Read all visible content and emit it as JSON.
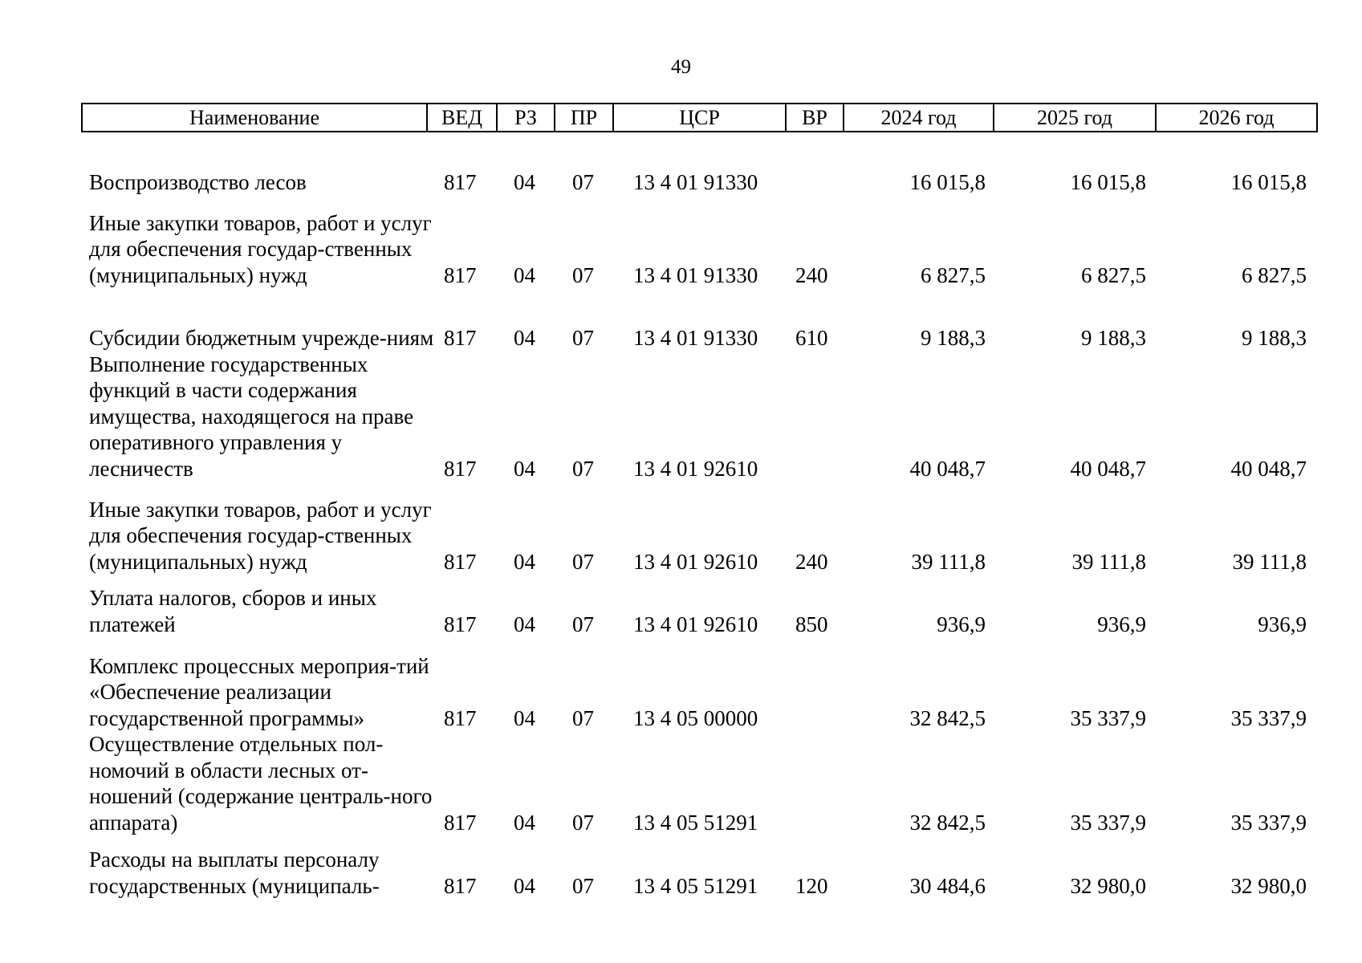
{
  "page_number": "49",
  "header": {
    "name": "Наименование",
    "ved": "ВЕД",
    "rz": "РЗ",
    "pr": "ПР",
    "csr": "ЦСР",
    "vr": "ВР",
    "y2024": "2024 год",
    "y2025": "2025 год",
    "y2026": "2026 год"
  },
  "rows": [
    {
      "name": "Воспроизводство лесов",
      "ved": "817",
      "rz": "04",
      "pr": "07",
      "csr": "13 4 01 91330",
      "vr": "",
      "y2024": "16 015,8",
      "y2025": "16 015,8",
      "y2026": "16 015,8"
    },
    {
      "name": "Иные закупки товаров, работ и услуг для обеспечения государ-ственных (муниципальных) нужд",
      "ved": "817",
      "rz": "04",
      "pr": "07",
      "csr": "13 4 01 91330",
      "vr": "240",
      "y2024": "6 827,5",
      "y2025": "6 827,5",
      "y2026": "6 827,5"
    },
    {
      "name": "Субсидии бюджетным учрежде-ниям",
      "ved": "817",
      "rz": "04",
      "pr": "07",
      "csr": "13 4 01 91330",
      "vr": "610",
      "y2024": "9 188,3",
      "y2025": "9 188,3",
      "y2026": "9 188,3"
    },
    {
      "name": "Выполнение государственных функций в части содержания имущества, находящегося на праве оперативного управления у лесничеств",
      "ved": "817",
      "rz": "04",
      "pr": "07",
      "csr": "13 4 01 92610",
      "vr": "",
      "y2024": "40 048,7",
      "y2025": "40 048,7",
      "y2026": "40 048,7"
    },
    {
      "name": "Иные закупки товаров, работ и услуг для обеспечения государ-ственных (муниципальных) нужд",
      "ved": "817",
      "rz": "04",
      "pr": "07",
      "csr": "13 4 01 92610",
      "vr": "240",
      "y2024": "39 111,8",
      "y2025": "39 111,8",
      "y2026": "39 111,8"
    },
    {
      "name": "Уплата налогов, сборов и иных платежей",
      "ved": "817",
      "rz": "04",
      "pr": "07",
      "csr": "13 4 01 92610",
      "vr": "850",
      "y2024": "936,9",
      "y2025": "936,9",
      "y2026": "936,9"
    },
    {
      "name": "Комплекс процессных мероприя-тий «Обеспечение реализации государственной программы»",
      "ved": "817",
      "rz": "04",
      "pr": "07",
      "csr": "13 4 05 00000",
      "vr": "",
      "y2024": "32 842,5",
      "y2025": "35 337,9",
      "y2026": "35 337,9"
    },
    {
      "name": "Осуществление отдельных пол-номочий в области лесных от-ношений (содержание централь-ного аппарата)",
      "ved": "817",
      "rz": "04",
      "pr": "07",
      "csr": "13 4 05 51291",
      "vr": "",
      "y2024": "32 842,5",
      "y2025": "35 337,9",
      "y2026": "35 337,9"
    },
    {
      "name": "Расходы на выплаты персоналу государственных (муниципаль-",
      "ved": "817",
      "rz": "04",
      "pr": "07",
      "csr": "13 4 05 51291",
      "vr": "120",
      "y2024": "30 484,6",
      "y2025": "32 980,0",
      "y2026": "32 980,0"
    }
  ]
}
